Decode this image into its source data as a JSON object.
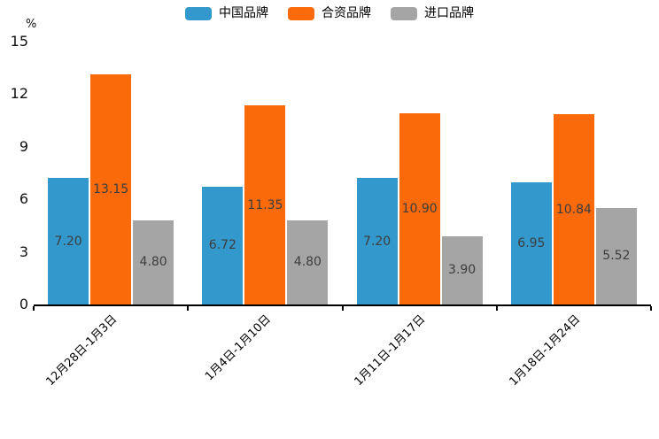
{
  "chart_data": {
    "type": "bar",
    "categories": [
      "12月28日-1月3日",
      "1月4日-1月10日",
      "1月11日-1月17日",
      "1月18日-1月24日"
    ],
    "series": [
      {
        "name": "中国品牌",
        "color": "#3398CC",
        "values": [
          7.2,
          6.72,
          7.2,
          6.95
        ],
        "labels": [
          "7.20",
          "6.72",
          "7.20",
          "6.95"
        ]
      },
      {
        "name": "合资品牌",
        "color": "#FB6A0A",
        "values": [
          13.15,
          11.35,
          10.9,
          10.84
        ],
        "labels": [
          "13.15",
          "11.35",
          "10.90",
          "10.84"
        ]
      },
      {
        "name": "进口品牌",
        "color": "#A5A5A5",
        "values": [
          4.8,
          4.8,
          3.9,
          5.52
        ],
        "labels": [
          "4.80",
          "4.80",
          "3.90",
          "5.52"
        ]
      }
    ],
    "title": "",
    "xlabel": "",
    "ylabel": "%",
    "ylim": [
      0,
      15
    ],
    "yticks": [
      "0",
      "3",
      "6",
      "9",
      "12",
      "15"
    ],
    "legend_position": "top",
    "grid": false,
    "value_label_color": "#3d3d3d",
    "axis_color": "#000000"
  }
}
